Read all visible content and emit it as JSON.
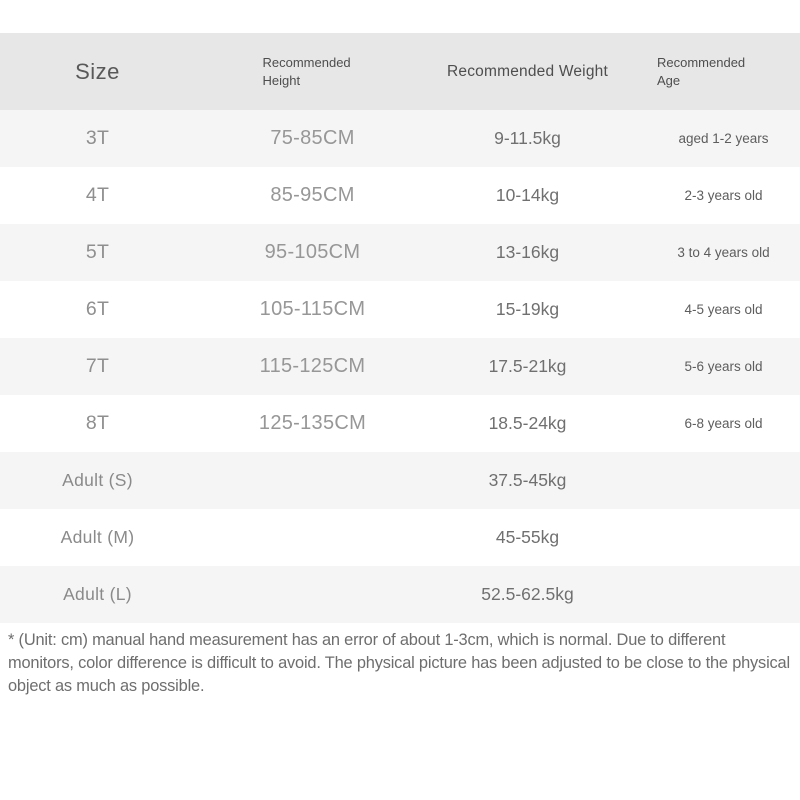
{
  "table": {
    "header": {
      "size": "Size",
      "height": "Recommended Height",
      "weight": "Recommended Weight",
      "age": "Recommended Age"
    },
    "rows": [
      {
        "size": "3T",
        "height": "75-85CM",
        "weight": "9-11.5kg",
        "age": "aged 1-2 years"
      },
      {
        "size": "4T",
        "height": "85-95CM",
        "weight": "10-14kg",
        "age": "2-3 years old"
      },
      {
        "size": "5T",
        "height": "95-105CM",
        "weight": "13-16kg",
        "age": "3 to 4 years old"
      },
      {
        "size": "6T",
        "height": "105-115CM",
        "weight": "15-19kg",
        "age": "4-5 years old"
      },
      {
        "size": "7T",
        "height": "115-125CM",
        "weight": "17.5-21kg",
        "age": "5-6 years old"
      },
      {
        "size": "8T",
        "height": "125-135CM",
        "weight": "18.5-24kg",
        "age": "6-8 years old"
      },
      {
        "size": "Adult (S)",
        "height": "",
        "weight": "37.5-45kg",
        "age": ""
      },
      {
        "size": "Adult (M)",
        "height": "",
        "weight": "45-55kg",
        "age": ""
      },
      {
        "size": "Adult (L)",
        "height": "",
        "weight": "52.5-62.5kg",
        "age": ""
      }
    ]
  },
  "footnote": "* (Unit: cm) manual hand measurement has an error of about 1-3cm, which is normal. Due to different monitors, color difference is difficult to avoid. The physical picture has been adjusted to be close to the physical object as much as possible.",
  "colors": {
    "header_bg": "#e7e7e7",
    "row_alt_bg": "#f5f5f5",
    "page_bg": "#ffffff",
    "header_text": "#4e4e4e",
    "cell_text": "#8f8f8f",
    "footnote_text": "#6e6e6e"
  }
}
